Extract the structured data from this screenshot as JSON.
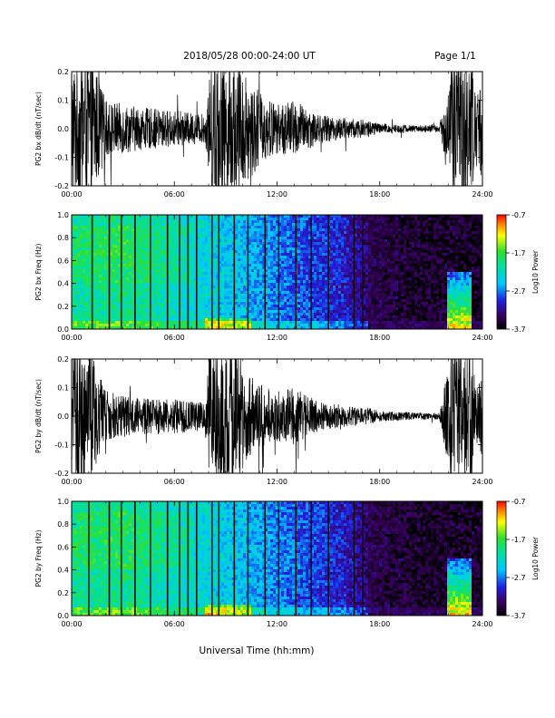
{
  "header": {
    "date_range": "2018/05/28  00:00-24:00 UT",
    "page": "Page 1/1"
  },
  "x_axis": {
    "title": "Universal Time (hh:mm)",
    "ticks": [
      "00:00",
      "06:00",
      "12:00",
      "18:00",
      "24:00"
    ]
  },
  "colorbar": {
    "label": "Log10 Power",
    "tick_labels": [
      "-0.7",
      "-1.7",
      "-2.7",
      "-3.7"
    ]
  },
  "chart_data": [
    {
      "type": "line",
      "ylabel": "PG2 bx dB/dt (nT/sec)",
      "x_unit": "hours UT",
      "xlim": [
        0,
        24
      ],
      "ylim": [
        -0.2,
        0.2
      ],
      "yticks": [
        "0.2",
        "0.1",
        "0.0",
        "-0.1",
        "-0.2"
      ],
      "xticks": [
        "00:00",
        "06:00",
        "12:00",
        "18:00",
        "24:00"
      ],
      "color": "#000000",
      "envelope": {
        "x": [
          0,
          1.2,
          2,
          4,
          6,
          7.8,
          8.2,
          9.5,
          10.3,
          11,
          12,
          13,
          14.5,
          16,
          17.3,
          18,
          20,
          21.5,
          22.2,
          23.4,
          23.6,
          24
        ],
        "amplitude": [
          0.2,
          0.2,
          0.08,
          0.06,
          0.05,
          0.04,
          0.2,
          0.2,
          0.15,
          0.1,
          0.07,
          0.08,
          0.04,
          0.03,
          0.025,
          0.015,
          0.01,
          0.01,
          0.2,
          0.2,
          0.1,
          0.14
        ]
      }
    },
    {
      "type": "heatmap",
      "ylabel": "PG2 bx Freq (Hz)",
      "xlim": [
        0,
        24
      ],
      "ylim": [
        0,
        1.0
      ],
      "yticks": [
        "1.0",
        "0.8",
        "0.6",
        "0.4",
        "0.2",
        "0.0"
      ],
      "xticks": [
        "00:00",
        "06:00",
        "12:00",
        "18:00",
        "24:00"
      ],
      "colorscale_range": [
        -3.7,
        -0.7
      ],
      "dark_vertical_lines_hours": [
        1.2,
        2.2,
        2.9,
        3.7,
        4.6,
        5.6,
        6.3,
        6.8,
        7.3,
        8.2,
        8.6,
        9.5,
        10.3,
        11.3,
        12.1,
        13.1,
        14.0,
        15.0,
        16.5,
        17.0
      ],
      "bright_region": {
        "x_start": 22.0,
        "x_end": 23.3,
        "freq_max": 0.5
      }
    },
    {
      "type": "line",
      "ylabel": "PG2 by dB/dt (nT/sec)",
      "x_unit": "hours UT",
      "xlim": [
        0,
        24
      ],
      "ylim": [
        -0.2,
        0.2
      ],
      "yticks": [
        "0.2",
        "0.1",
        "0.0",
        "-0.1",
        "-0.2"
      ],
      "xticks": [
        "00:00",
        "06:00",
        "12:00",
        "18:00",
        "24:00"
      ],
      "color": "#000000",
      "envelope": {
        "x": [
          0,
          1.0,
          2,
          4,
          6,
          7.8,
          8.0,
          9.5,
          10.3,
          11,
          12,
          13,
          14.5,
          16,
          17.3,
          18,
          20,
          21.5,
          22.2,
          23.4,
          23.6,
          24
        ],
        "amplitude": [
          0.2,
          0.2,
          0.07,
          0.05,
          0.05,
          0.04,
          0.2,
          0.2,
          0.12,
          0.09,
          0.07,
          0.08,
          0.04,
          0.03,
          0.025,
          0.015,
          0.01,
          0.01,
          0.2,
          0.2,
          0.1,
          0.13
        ]
      }
    },
    {
      "type": "heatmap",
      "ylabel": "PG2 by Freq (Hz)",
      "xlim": [
        0,
        24
      ],
      "ylim": [
        0,
        1.0
      ],
      "yticks": [
        "1.0",
        "0.8",
        "0.6",
        "0.4",
        "0.2",
        "0.0"
      ],
      "xticks": [
        "00:00",
        "06:00",
        "12:00",
        "18:00",
        "24:00"
      ],
      "colorscale_range": [
        -3.7,
        -0.7
      ],
      "dark_vertical_lines_hours": [
        1.0,
        2.2,
        2.9,
        3.7,
        4.6,
        5.6,
        6.3,
        6.8,
        7.3,
        8.2,
        8.6,
        9.5,
        10.3,
        11.3,
        12.1,
        13.1,
        14.0,
        15.0,
        16.5,
        17.0
      ],
      "bright_region": {
        "x_start": 22.0,
        "x_end": 23.3,
        "freq_max": 0.5
      }
    }
  ]
}
